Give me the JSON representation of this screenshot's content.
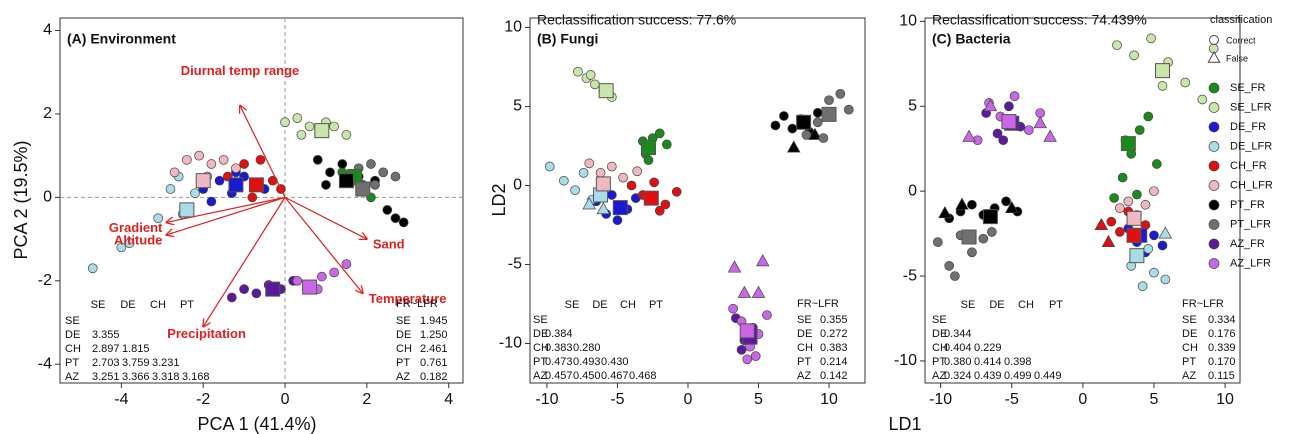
{
  "chart_data": [
    {
      "type": "scatter",
      "title": "(A) Environment",
      "x_label": "PCA 1 (41.4%)",
      "y_label": "PCA 2 (19.5%)",
      "xlim": [
        -5.5,
        4.35
      ],
      "ylim": [
        -4.45,
        4.3
      ],
      "xticks": [
        -4,
        -2,
        0,
        2,
        4
      ],
      "yticks": [
        -4,
        -2,
        0,
        2,
        4
      ],
      "zero_lines": true,
      "vectors": [
        {
          "label": "Diurnal temp range",
          "x": -1.1,
          "y": 2.2
        },
        {
          "label": "Gradient",
          "x": -2.9,
          "y": -0.6
        },
        {
          "label": "Altitude",
          "x": -2.9,
          "y": -0.9
        },
        {
          "label": "Sand",
          "x": 2.0,
          "y": -1.0
        },
        {
          "label": "Temperature",
          "x": 1.9,
          "y": -2.3
        },
        {
          "label": "Precipitation",
          "x": -2.0,
          "y": -3.1
        }
      ],
      "series": [
        {
          "name": "SE_FR",
          "color": "#1a8a1a",
          "x": [
            1.7,
            2.1,
            1.9,
            1.4
          ],
          "y": [
            0.4,
            0.0,
            0.3,
            0.6
          ],
          "centroid_x": 1.7,
          "centroid_y": 0.5
        },
        {
          "name": "SE_LFR",
          "color": "#c8e6a8",
          "x": [
            0.0,
            0.3,
            0.6,
            0.9,
            1.2,
            1.5,
            0.4,
            1.0
          ],
          "y": [
            1.8,
            1.9,
            1.7,
            1.6,
            1.7,
            1.5,
            1.5,
            1.8
          ],
          "centroid_x": 0.9,
          "centroid_y": 1.6
        },
        {
          "name": "DE_FR",
          "color": "#1a1ad0",
          "x": [
            -2.0,
            -1.6,
            -1.3,
            -1.0,
            -0.7,
            -1.8,
            -1.2,
            -0.5
          ],
          "y": [
            0.2,
            0.4,
            0.1,
            0.5,
            0.3,
            -0.1,
            0.6,
            0.2
          ],
          "centroid_x": -1.2,
          "centroid_y": 0.3
        },
        {
          "name": "DE_LFR",
          "color": "#a8dce8",
          "x": [
            -2.8,
            -2.5,
            -2.2,
            -3.1,
            -2.6,
            -4.7,
            -4.0,
            -3.8
          ],
          "y": [
            0.2,
            -0.4,
            0.1,
            -0.5,
            0.5,
            -1.7,
            -1.2,
            -1.1
          ],
          "centroid_x": -2.4,
          "centroid_y": -0.3
        },
        {
          "name": "CH_FR",
          "color": "#e01010",
          "x": [
            -1.4,
            -1.0,
            -0.6,
            -0.3,
            -0.1,
            -0.8,
            -1.2
          ],
          "y": [
            0.5,
            0.8,
            0.9,
            0.4,
            0.2,
            0.0,
            0.3
          ],
          "centroid_x": -0.7,
          "centroid_y": 0.3
        },
        {
          "name": "CH_LFR",
          "color": "#f0b8c0",
          "x": [
            -2.4,
            -2.1,
            -1.8,
            -1.5,
            -1.2,
            -2.7,
            -1.9
          ],
          "y": [
            0.9,
            1.0,
            0.8,
            0.9,
            0.7,
            0.6,
            0.5
          ],
          "centroid_x": -2.0,
          "centroid_y": 0.4
        },
        {
          "name": "PT_FR",
          "color": "#000000",
          "x": [
            0.8,
            1.1,
            1.4,
            1.8,
            2.2,
            2.5,
            2.7,
            2.9,
            1.0
          ],
          "y": [
            0.9,
            0.6,
            0.8,
            0.5,
            0.4,
            -0.3,
            -0.5,
            -0.6,
            0.3
          ],
          "centroid_x": 1.5,
          "centroid_y": 0.4
        },
        {
          "name": "PT_LFR",
          "color": "#707070",
          "x": [
            1.8,
            2.1,
            2.4,
            2.7,
            2.2
          ],
          "y": [
            0.7,
            0.8,
            0.6,
            0.5,
            0.3
          ],
          "centroid_x": 1.9,
          "centroid_y": 0.2
        },
        {
          "name": "AZ_FR",
          "color": "#5a1a9a",
          "x": [
            -1.3,
            -1.0,
            -0.7,
            -0.4,
            -0.1,
            0.2
          ],
          "y": [
            -2.4,
            -2.2,
            -2.3,
            -2.1,
            -2.2,
            -2.0
          ],
          "centroid_x": -0.3,
          "centroid_y": -2.2
        },
        {
          "name": "AZ_LFR",
          "color": "#cc66e8",
          "x": [
            0.3,
            0.6,
            0.9,
            1.2,
            1.5,
            0.8
          ],
          "y": [
            -2.0,
            -2.1,
            -1.9,
            -1.8,
            -1.6,
            -2.2
          ],
          "centroid_x": 0.6,
          "centroid_y": -2.15
        }
      ],
      "table": {
        "columns": [
          "SE",
          "DE",
          "CH",
          "PT"
        ],
        "rows": [
          {
            "label": "SE",
            "values": []
          },
          {
            "label": "DE",
            "values": [
              "3.355"
            ]
          },
          {
            "label": "CH",
            "values": [
              "2.897",
              "1.815"
            ]
          },
          {
            "label": "PT",
            "values": [
              "2.703",
              "3.759",
              "3.231"
            ]
          },
          {
            "label": "AZ",
            "values": [
              "3.251",
              "3.366",
              "3.318",
              "3.168"
            ]
          }
        ],
        "fr_header": "FR~LFR",
        "fr_rows": [
          {
            "label": "SE",
            "value": "1.945"
          },
          {
            "label": "DE",
            "value": "1.250"
          },
          {
            "label": "CH",
            "value": "2.461"
          },
          {
            "label": "PT",
            "value": "0.761"
          },
          {
            "label": "AZ",
            "value": "0.182"
          }
        ]
      }
    },
    {
      "type": "scatter",
      "annotation": "Reclassification success: 77.6%",
      "title": "(B) Fungi",
      "x_label": "LD1",
      "y_label": "LD2",
      "xlim": [
        -11.2,
        12.55
      ],
      "ylim": [
        -12.5,
        10.6
      ],
      "xticks": [
        -10,
        -5,
        0,
        5,
        10
      ],
      "yticks": [
        -10,
        -5,
        0,
        5,
        10
      ],
      "series": [
        {
          "name": "SE_FR",
          "color": "#1a8a1a",
          "x": [
            -3.0,
            -2.5,
            -2.0,
            -1.5,
            -2.8,
            -3.2
          ],
          "y": [
            2.0,
            3.0,
            3.3,
            2.6,
            1.6,
            2.8
          ],
          "centroid_x": -2.8,
          "centroid_y": 2.4
        },
        {
          "name": "SE_LFR",
          "color": "#c8e6a8",
          "x": [
            -7.8,
            -7.2,
            -6.6,
            -6.0,
            -5.4,
            -6.9
          ],
          "y": [
            7.2,
            6.8,
            6.4,
            6.0,
            5.6,
            7.0
          ],
          "centroid_x": -5.8,
          "centroid_y": 6.0
        },
        {
          "name": "DE_FR",
          "color": "#1a1ad0",
          "x": [
            -6.5,
            -5.8,
            -5.0,
            -4.3,
            -3.7,
            -5.4
          ],
          "y": [
            -1.0,
            -1.8,
            -2.2,
            -1.5,
            -0.8,
            -0.6
          ],
          "centroid_x": -4.8,
          "centroid_y": -1.4
        },
        {
          "name": "DE_LFR",
          "color": "#a8dce8",
          "x": [
            -9.8,
            -8.8,
            -8.0,
            -7.4,
            -6.8
          ],
          "y": [
            1.2,
            0.3,
            -0.3,
            0.8,
            -0.9
          ],
          "false_x": [
            -7.0,
            -6.0
          ],
          "false_y": [
            -1.2,
            -1.5
          ],
          "centroid_x": -6.2,
          "centroid_y": -0.6
        },
        {
          "name": "CH_FR",
          "color": "#e01010",
          "x": [
            -4.0,
            -3.2,
            -2.4,
            -1.6,
            -0.8,
            -2.0
          ],
          "y": [
            0.0,
            -0.6,
            0.2,
            -1.2,
            -0.4,
            -1.6
          ],
          "centroid_x": -2.6,
          "centroid_y": -0.8
        },
        {
          "name": "CH_LFR",
          "color": "#f0b8c0",
          "x": [
            -7.0,
            -6.2,
            -5.4,
            -4.6,
            -3.6
          ],
          "y": [
            1.4,
            0.8,
            1.2,
            0.5,
            0.9
          ],
          "centroid_x": -6.0,
          "centroid_y": 0.1
        },
        {
          "name": "PT_FR",
          "color": "#000000",
          "x": [
            6.2,
            6.8,
            7.4,
            8.0,
            8.6,
            9.2
          ],
          "y": [
            3.8,
            4.4,
            3.6,
            4.2,
            3.4,
            4.6
          ],
          "false_x": [
            7.5,
            9.0
          ],
          "false_y": [
            2.4,
            3.2
          ],
          "centroid_x": 8.2,
          "centroid_y": 4.0
        },
        {
          "name": "PT_LFR",
          "color": "#707070",
          "x": [
            8.4,
            9.2,
            10.0,
            10.8,
            11.4,
            9.6
          ],
          "y": [
            3.2,
            4.0,
            5.4,
            5.8,
            4.8,
            3.0
          ],
          "centroid_x": 10.0,
          "centroid_y": 4.5
        },
        {
          "name": "AZ_FR",
          "color": "#5a1a9a",
          "x": [
            3.4,
            4.0,
            4.6,
            3.8
          ],
          "y": [
            -8.4,
            -9.8,
            -9.0,
            -10.4
          ],
          "centroid_x": 4.4,
          "centroid_y": -9.6
        },
        {
          "name": "AZ_LFR",
          "color": "#cc66e8",
          "x": [
            3.2,
            3.8,
            4.4,
            5.0,
            5.6,
            4.2,
            4.8
          ],
          "y": [
            -7.8,
            -8.6,
            -10.2,
            -9.4,
            -8.2,
            -11.0,
            -10.8
          ],
          "false_x": [
            3.3,
            5.3,
            4.0,
            5.0
          ],
          "false_y": [
            -5.2,
            -4.8,
            -6.8,
            -6.8
          ],
          "centroid_x": 4.2,
          "centroid_y": -9.2
        }
      ],
      "table": {
        "columns": [
          "SE",
          "DE",
          "CH",
          "PT"
        ],
        "rows": [
          {
            "label": "SE",
            "values": []
          },
          {
            "label": "DE",
            "values": [
              "0.384"
            ]
          },
          {
            "label": "CH",
            "values": [
              "0.383",
              "0.280"
            ]
          },
          {
            "label": "PT",
            "values": [
              "0.473",
              "0.493",
              "0.430"
            ]
          },
          {
            "label": "AZ",
            "values": [
              "0.457",
              "0.450",
              "0.467",
              "0.468"
            ]
          }
        ],
        "fr_header": "FR~LFR",
        "fr_rows": [
          {
            "label": "SE",
            "value": "0.355"
          },
          {
            "label": "DE",
            "value": "0.272"
          },
          {
            "label": "CH",
            "value": "0.383"
          },
          {
            "label": "PT",
            "value": "0.214"
          },
          {
            "label": "AZ",
            "value": "0.142"
          }
        ]
      }
    },
    {
      "type": "scatter",
      "annotation": "Reclassification success: 74.439%",
      "title": "(C) Bacteria",
      "xlim": [
        -11.1,
        11.05
      ],
      "ylim": [
        -11.3,
        10.2
      ],
      "xticks": [
        -10,
        -5,
        0,
        5,
        10
      ],
      "yticks": [
        -10,
        -5,
        0,
        5,
        10
      ],
      "legend": {
        "title": "classification",
        "shapes": [
          "Correct",
          "False"
        ]
      },
      "series": [
        {
          "name": "SE_FR",
          "color": "#1a8a1a",
          "x": [
            2.2,
            2.8,
            3.4,
            4.0,
            4.6,
            5.2,
            3.0,
            3.8
          ],
          "y": [
            -0.4,
            0.8,
            2.2,
            3.6,
            4.4,
            1.6,
            3.0,
            -0.2
          ],
          "centroid_x": 3.2,
          "centroid_y": 2.8
        },
        {
          "name": "SE_LFR",
          "color": "#c8e6a8",
          "x": [
            2.4,
            3.6,
            4.8,
            6.0,
            7.2,
            8.4,
            9.2,
            5.6
          ],
          "y": [
            8.6,
            8.0,
            9.0,
            7.6,
            6.4,
            5.4,
            8.4,
            6.2
          ],
          "centroid_x": 5.6,
          "centroid_y": 7.1
        },
        {
          "name": "DE_FR",
          "color": "#1a1ad0",
          "x": [
            3.2,
            3.8,
            4.4,
            5.0,
            5.6
          ],
          "y": [
            -2.2,
            -3.0,
            -3.6,
            -2.6,
            -3.2
          ],
          "centroid_x": 4.0,
          "centroid_y": -2.6
        },
        {
          "name": "DE_LFR",
          "color": "#a8dce8",
          "x": [
            3.4,
            4.2,
            5.0,
            5.8,
            4.6
          ],
          "y": [
            -4.4,
            -5.6,
            -4.8,
            -5.2,
            -3.4
          ],
          "false_x": [
            5.8
          ],
          "false_y": [
            -2.5
          ],
          "centroid_x": 3.8,
          "centroid_y": -3.8
        },
        {
          "name": "CH_FR",
          "color": "#e01010",
          "x": [
            2.0,
            2.6,
            3.2,
            3.8,
            4.4
          ],
          "y": [
            -1.8,
            -2.4,
            -1.2,
            -2.8,
            -2.0
          ],
          "false_x": [
            1.3,
            1.8
          ],
          "false_y": [
            -2.0,
            -3.0
          ],
          "centroid_x": 3.6,
          "centroid_y": -2.6
        },
        {
          "name": "CH_LFR",
          "color": "#f0b8c0",
          "x": [
            2.6,
            3.2,
            3.8,
            4.4,
            5.0
          ],
          "y": [
            -1.0,
            -0.6,
            -1.4,
            -0.8,
            0.0
          ],
          "centroid_x": 3.6,
          "centroid_y": -1.6
        },
        {
          "name": "PT_FR",
          "color": "#000000",
          "x": [
            -9.4,
            -8.6,
            -7.8,
            -7.0,
            -6.2,
            -5.4,
            -4.6
          ],
          "y": [
            -1.6,
            -1.2,
            -0.8,
            -1.4,
            -1.0,
            -0.6,
            -1.2
          ],
          "false_x": [
            -9.7,
            -8.5,
            -5.0
          ],
          "false_y": [
            -1.3,
            -0.8,
            -1.0
          ],
          "centroid_x": -6.5,
          "centroid_y": -1.5
        },
        {
          "name": "PT_LFR",
          "color": "#707070",
          "x": [
            -10.2,
            -9.4,
            -8.6,
            -7.8,
            -7.0,
            -6.4,
            -9.0
          ],
          "y": [
            -3.0,
            -4.4,
            -2.6,
            -3.6,
            -2.8,
            -2.4,
            -5.0
          ],
          "centroid_x": -8.0,
          "centroid_y": -2.7
        },
        {
          "name": "AZ_FR",
          "color": "#5a1a9a",
          "x": [
            -6.8,
            -6.0,
            -5.2,
            -4.4,
            -5.6
          ],
          "y": [
            4.6,
            3.4,
            5.0,
            3.8,
            3.0
          ],
          "centroid_x": -5.0,
          "centroid_y": 4.0
        },
        {
          "name": "AZ_LFR",
          "color": "#cc66e8",
          "x": [
            -7.4,
            -6.6,
            -5.8,
            -4.8,
            -3.8,
            -3.0
          ],
          "y": [
            3.0,
            5.2,
            4.4,
            5.6,
            3.6,
            4.6
          ],
          "false_x": [
            -8.0,
            -6.5,
            -3.0,
            -2.3
          ],
          "false_y": [
            3.2,
            5.0,
            4.0,
            3.2
          ],
          "centroid_x": -5.2,
          "centroid_y": 4.1
        }
      ],
      "table": {
        "columns": [
          "SE",
          "DE",
          "CH",
          "PT"
        ],
        "rows": [
          {
            "label": "SE",
            "values": []
          },
          {
            "label": "DE",
            "values": [
              "0.344"
            ]
          },
          {
            "label": "CH",
            "values": [
              "0.404",
              "0.229"
            ]
          },
          {
            "label": "PT",
            "values": [
              "0.380",
              "0.414",
              "0.398"
            ]
          },
          {
            "label": "AZ",
            "values": [
              "0.324",
              "0.439",
              "0.499",
              "0.449"
            ]
          }
        ],
        "fr_header": "FR~LFR",
        "fr_rows": [
          {
            "label": "SE",
            "value": "0.334"
          },
          {
            "label": "DE",
            "value": "0.176"
          },
          {
            "label": "CH",
            "value": "0.339"
          },
          {
            "label": "PT",
            "value": "0.170"
          },
          {
            "label": "AZ",
            "value": "0.115"
          }
        ]
      }
    }
  ]
}
